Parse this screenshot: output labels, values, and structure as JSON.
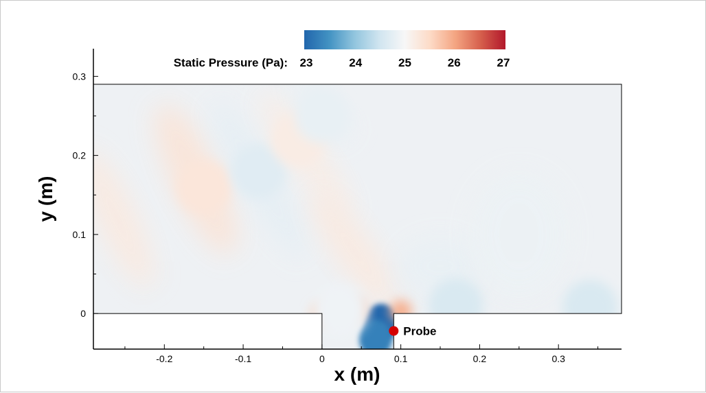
{
  "chart_data": {
    "type": "heatmap",
    "xlabel": "x (m)",
    "ylabel": "y (m)",
    "xlim": [
      -0.29,
      0.38
    ],
    "ylim": [
      -0.045,
      0.335
    ],
    "xticks": [
      -0.2,
      -0.1,
      0,
      0.1,
      0.2,
      0.3
    ],
    "xtick_labels": [
      "-0.2",
      "-0.1",
      "0",
      "0.1",
      "0.2",
      "0.3"
    ],
    "yticks": [
      0,
      0.1,
      0.2,
      0.3
    ],
    "ytick_labels": [
      "0",
      "0.1",
      "0.2",
      "0.3"
    ],
    "domain": {
      "x": [
        -0.29,
        0.38
      ],
      "y": [
        0,
        0.29
      ]
    },
    "cavity": {
      "x": [
        0,
        0.091
      ],
      "y": [
        -0.045,
        0
      ]
    },
    "colorbar": {
      "label": "Static Pressure (Pa):",
      "range": [
        23,
        27
      ],
      "ticks": [
        23,
        24,
        25,
        26,
        27
      ],
      "colors": [
        "#2166ac",
        "#4393c3",
        "#92c5de",
        "#d1e5f0",
        "#f7f7f7",
        "#fddbc7",
        "#f4a582",
        "#d6604d",
        "#b2182b"
      ]
    },
    "field_features": [
      {
        "kind": "low",
        "x": 0.075,
        "y": -0.012,
        "value": 23.0
      },
      {
        "kind": "low",
        "x": 0.068,
        "y": -0.032,
        "value": 23.3
      },
      {
        "kind": "high",
        "x": 0.1,
        "y": 0.003,
        "value": 25.9
      },
      {
        "kind": "high",
        "x": 0.043,
        "y": 0.005,
        "value": 25.8
      },
      {
        "kind": "high",
        "x": 0.0,
        "y": 0.0,
        "value": 25.6
      },
      {
        "kind": "low",
        "x": 0.023,
        "y": 0.004,
        "value": 24.9
      },
      {
        "kind": "low",
        "x": 0.17,
        "y": 0.01,
        "value": 24.6
      },
      {
        "kind": "low",
        "x": 0.34,
        "y": 0.008,
        "value": 24.6
      },
      {
        "kind": "high",
        "x": -0.15,
        "y": 0.16,
        "value": 25.3
      },
      {
        "kind": "low",
        "x": -0.08,
        "y": 0.18,
        "value": 24.7
      },
      {
        "kind": "high",
        "x": -0.03,
        "y": 0.22,
        "value": 25.2
      },
      {
        "kind": "low",
        "x": 0.0,
        "y": 0.25,
        "value": 24.8
      }
    ],
    "annotations": [
      {
        "label": "Probe",
        "x": 0.091,
        "y": -0.022,
        "marker_color": "#d40000"
      }
    ]
  }
}
